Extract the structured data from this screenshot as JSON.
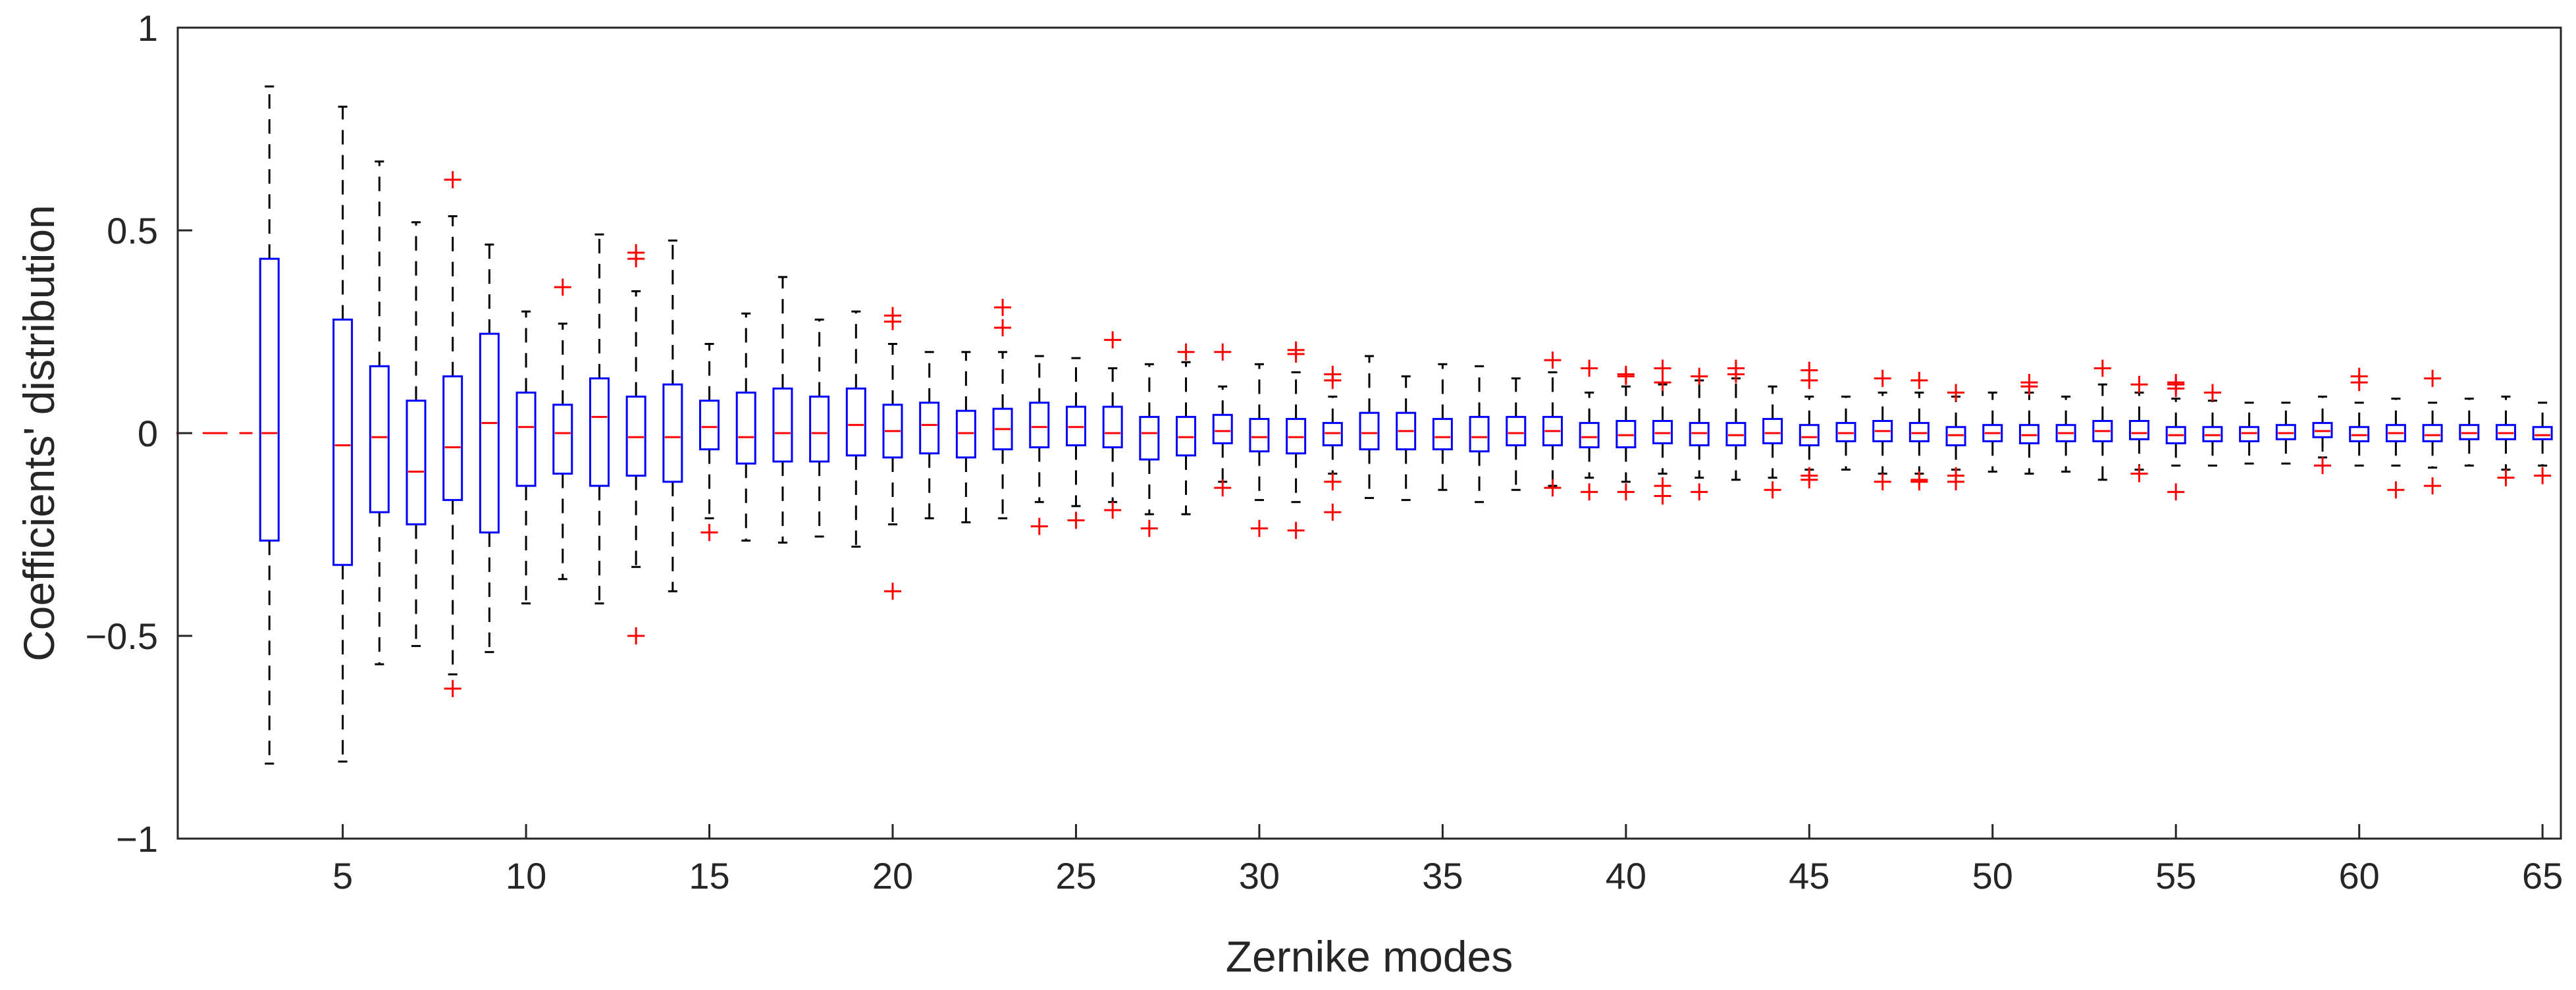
{
  "chart_data": {
    "type": "boxplot",
    "title": "",
    "xlabel": "Zernike modes",
    "ylabel": "Coefficients' distribution",
    "xlim": [
      0.5,
      65.5
    ],
    "ylim": [
      -1,
      1
    ],
    "x_ticks": [
      5,
      10,
      15,
      20,
      25,
      30,
      35,
      40,
      45,
      50,
      55,
      60,
      65
    ],
    "x_tick_labels": [
      "5",
      "10",
      "15",
      "20",
      "25",
      "30",
      "35",
      "40",
      "45",
      "50",
      "55",
      "60",
      "65"
    ],
    "y_ticks": [
      -1,
      -0.5,
      0,
      0.5,
      1
    ],
    "y_tick_labels": [
      "−1",
      "−0.5",
      "0",
      "0.5",
      "1"
    ],
    "colors": {
      "box": "#0000ff",
      "median": "#ff0000",
      "whisker": "#000000",
      "outlier": "#ff0000",
      "axis": "#262626"
    },
    "degenerate_modes": [
      {
        "mode": 1,
        "value": 0
      },
      {
        "mode": 2,
        "value": 0
      }
    ],
    "boxes": [
      {
        "mode": 3,
        "q1": -0.265,
        "median": 0.0,
        "q3": 0.43,
        "whisker_low": -0.815,
        "whisker_high": 0.855,
        "outliers": []
      },
      {
        "mode": 5,
        "q1": -0.325,
        "median": -0.03,
        "q3": 0.28,
        "whisker_low": -0.81,
        "whisker_high": 0.805,
        "outliers": []
      },
      {
        "mode": 6,
        "q1": -0.195,
        "median": -0.01,
        "q3": 0.165,
        "whisker_low": -0.57,
        "whisker_high": 0.67,
        "outliers": []
      },
      {
        "mode": 7,
        "q1": -0.225,
        "median": -0.095,
        "q3": 0.08,
        "whisker_low": -0.525,
        "whisker_high": 0.52,
        "outliers": []
      },
      {
        "mode": 8,
        "q1": -0.165,
        "median": -0.035,
        "q3": 0.14,
        "whisker_low": -0.595,
        "whisker_high": 0.535,
        "outliers": [
          0.625,
          -0.63
        ]
      },
      {
        "mode": 9,
        "q1": -0.245,
        "median": 0.025,
        "q3": 0.245,
        "whisker_low": -0.54,
        "whisker_high": 0.465,
        "outliers": []
      },
      {
        "mode": 10,
        "q1": -0.13,
        "median": 0.015,
        "q3": 0.1,
        "whisker_low": -0.42,
        "whisker_high": 0.3,
        "outliers": []
      },
      {
        "mode": 11,
        "q1": -0.1,
        "median": 0.0,
        "q3": 0.07,
        "whisker_low": -0.36,
        "whisker_high": 0.27,
        "outliers": [
          0.36
        ]
      },
      {
        "mode": 12,
        "q1": -0.13,
        "median": 0.04,
        "q3": 0.135,
        "whisker_low": -0.42,
        "whisker_high": 0.49,
        "outliers": []
      },
      {
        "mode": 13,
        "q1": -0.105,
        "median": -0.01,
        "q3": 0.09,
        "whisker_low": -0.33,
        "whisker_high": 0.35,
        "outliers": [
          0.445,
          0.43,
          -0.5
        ]
      },
      {
        "mode": 14,
        "q1": -0.12,
        "median": -0.01,
        "q3": 0.12,
        "whisker_low": -0.39,
        "whisker_high": 0.475,
        "outliers": []
      },
      {
        "mode": 15,
        "q1": -0.04,
        "median": 0.015,
        "q3": 0.08,
        "whisker_low": -0.21,
        "whisker_high": 0.22,
        "outliers": [
          -0.245
        ]
      },
      {
        "mode": 16,
        "q1": -0.075,
        "median": -0.01,
        "q3": 0.1,
        "whisker_low": -0.265,
        "whisker_high": 0.295,
        "outliers": []
      },
      {
        "mode": 17,
        "q1": -0.07,
        "median": 0.0,
        "q3": 0.11,
        "whisker_low": -0.27,
        "whisker_high": 0.385,
        "outliers": []
      },
      {
        "mode": 18,
        "q1": -0.07,
        "median": 0.0,
        "q3": 0.09,
        "whisker_low": -0.255,
        "whisker_high": 0.28,
        "outliers": []
      },
      {
        "mode": 19,
        "q1": -0.055,
        "median": 0.02,
        "q3": 0.11,
        "whisker_low": -0.28,
        "whisker_high": 0.3,
        "outliers": []
      },
      {
        "mode": 20,
        "q1": -0.06,
        "median": 0.005,
        "q3": 0.07,
        "whisker_low": -0.225,
        "whisker_high": 0.22,
        "outliers": [
          0.29,
          0.275,
          -0.39
        ]
      },
      {
        "mode": 21,
        "q1": -0.05,
        "median": 0.02,
        "q3": 0.075,
        "whisker_low": -0.21,
        "whisker_high": 0.2,
        "outliers": []
      },
      {
        "mode": 22,
        "q1": -0.06,
        "median": 0.0,
        "q3": 0.055,
        "whisker_low": -0.22,
        "whisker_high": 0.2,
        "outliers": []
      },
      {
        "mode": 23,
        "q1": -0.04,
        "median": 0.01,
        "q3": 0.06,
        "whisker_low": -0.21,
        "whisker_high": 0.2,
        "outliers": [
          0.31,
          0.26
        ]
      },
      {
        "mode": 24,
        "q1": -0.035,
        "median": 0.015,
        "q3": 0.075,
        "whisker_low": -0.17,
        "whisker_high": 0.19,
        "outliers": [
          -0.23
        ]
      },
      {
        "mode": 25,
        "q1": -0.03,
        "median": 0.015,
        "q3": 0.065,
        "whisker_low": -0.18,
        "whisker_high": 0.185,
        "outliers": [
          -0.215
        ]
      },
      {
        "mode": 26,
        "q1": -0.035,
        "median": 0.0,
        "q3": 0.065,
        "whisker_low": -0.17,
        "whisker_high": 0.16,
        "outliers": [
          0.23,
          -0.19
        ]
      },
      {
        "mode": 27,
        "q1": -0.065,
        "median": 0.0,
        "q3": 0.04,
        "whisker_low": -0.2,
        "whisker_high": 0.17,
        "outliers": [
          -0.235
        ]
      },
      {
        "mode": 28,
        "q1": -0.055,
        "median": -0.01,
        "q3": 0.04,
        "whisker_low": -0.2,
        "whisker_high": 0.175,
        "outliers": [
          0.2
        ]
      },
      {
        "mode": 29,
        "q1": -0.025,
        "median": 0.005,
        "q3": 0.045,
        "whisker_low": -0.12,
        "whisker_high": 0.115,
        "outliers": [
          0.2,
          -0.135
        ]
      },
      {
        "mode": 30,
        "q1": -0.045,
        "median": -0.01,
        "q3": 0.035,
        "whisker_low": -0.165,
        "whisker_high": 0.17,
        "outliers": [
          -0.235
        ]
      },
      {
        "mode": 31,
        "q1": -0.05,
        "median": -0.01,
        "q3": 0.035,
        "whisker_low": -0.17,
        "whisker_high": 0.15,
        "outliers": [
          0.205,
          0.195,
          -0.24
        ]
      },
      {
        "mode": 32,
        "q1": -0.03,
        "median": 0.0,
        "q3": 0.025,
        "whisker_low": -0.1,
        "whisker_high": 0.09,
        "outliers": [
          0.145,
          0.13,
          -0.12,
          -0.195
        ]
      },
      {
        "mode": 33,
        "q1": -0.04,
        "median": 0.0,
        "q3": 0.05,
        "whisker_low": -0.16,
        "whisker_high": 0.19,
        "outliers": []
      },
      {
        "mode": 34,
        "q1": -0.04,
        "median": 0.005,
        "q3": 0.05,
        "whisker_low": -0.165,
        "whisker_high": 0.14,
        "outliers": []
      },
      {
        "mode": 35,
        "q1": -0.04,
        "median": -0.01,
        "q3": 0.035,
        "whisker_low": -0.14,
        "whisker_high": 0.17,
        "outliers": []
      },
      {
        "mode": 36,
        "q1": -0.045,
        "median": -0.01,
        "q3": 0.04,
        "whisker_low": -0.17,
        "whisker_high": 0.165,
        "outliers": []
      },
      {
        "mode": 37,
        "q1": -0.03,
        "median": 0.0,
        "q3": 0.04,
        "whisker_low": -0.14,
        "whisker_high": 0.135,
        "outliers": []
      },
      {
        "mode": 38,
        "q1": -0.03,
        "median": 0.005,
        "q3": 0.04,
        "whisker_low": -0.13,
        "whisker_high": 0.15,
        "outliers": [
          0.18,
          -0.135
        ]
      },
      {
        "mode": 39,
        "q1": -0.035,
        "median": -0.01,
        "q3": 0.025,
        "whisker_low": -0.11,
        "whisker_high": 0.1,
        "outliers": [
          0.16,
          -0.145
        ]
      },
      {
        "mode": 40,
        "q1": -0.035,
        "median": -0.005,
        "q3": 0.03,
        "whisker_low": -0.12,
        "whisker_high": 0.115,
        "outliers": [
          0.145,
          0.14,
          -0.145
        ]
      },
      {
        "mode": 41,
        "q1": -0.025,
        "median": 0.0,
        "q3": 0.03,
        "whisker_low": -0.1,
        "whisker_high": 0.12,
        "outliers": [
          0.16,
          0.125,
          -0.13,
          -0.155
        ]
      },
      {
        "mode": 42,
        "q1": -0.03,
        "median": 0.0,
        "q3": 0.025,
        "whisker_low": -0.11,
        "whisker_high": 0.13,
        "outliers": [
          0.14,
          -0.145
        ]
      },
      {
        "mode": 43,
        "q1": -0.03,
        "median": -0.005,
        "q3": 0.025,
        "whisker_low": -0.115,
        "whisker_high": 0.135,
        "outliers": [
          0.16,
          0.145
        ]
      },
      {
        "mode": 44,
        "q1": -0.025,
        "median": 0.0,
        "q3": 0.035,
        "whisker_low": -0.11,
        "whisker_high": 0.115,
        "outliers": [
          -0.14
        ]
      },
      {
        "mode": 45,
        "q1": -0.03,
        "median": -0.01,
        "q3": 0.02,
        "whisker_low": -0.09,
        "whisker_high": 0.09,
        "outliers": [
          0.155,
          0.13,
          -0.105,
          -0.115
        ]
      },
      {
        "mode": 46,
        "q1": -0.02,
        "median": 0.0,
        "q3": 0.025,
        "whisker_low": -0.09,
        "whisker_high": 0.09,
        "outliers": []
      },
      {
        "mode": 47,
        "q1": -0.02,
        "median": 0.005,
        "q3": 0.03,
        "whisker_low": -0.1,
        "whisker_high": 0.1,
        "outliers": [
          0.135,
          -0.12
        ]
      },
      {
        "mode": 48,
        "q1": -0.02,
        "median": 0.0,
        "q3": 0.025,
        "whisker_low": -0.1,
        "whisker_high": 0.1,
        "outliers": [
          0.13,
          -0.115,
          -0.12
        ]
      },
      {
        "mode": 49,
        "q1": -0.03,
        "median": -0.005,
        "q3": 0.015,
        "whisker_low": -0.09,
        "whisker_high": 0.09,
        "outliers": [
          0.1,
          -0.105,
          -0.12
        ]
      },
      {
        "mode": 50,
        "q1": -0.02,
        "median": 0.0,
        "q3": 0.02,
        "whisker_low": -0.095,
        "whisker_high": 0.1,
        "outliers": []
      },
      {
        "mode": 51,
        "q1": -0.025,
        "median": -0.005,
        "q3": 0.02,
        "whisker_low": -0.1,
        "whisker_high": 0.1,
        "outliers": [
          0.125,
          0.115
        ]
      },
      {
        "mode": 52,
        "q1": -0.02,
        "median": 0.0,
        "q3": 0.02,
        "whisker_low": -0.095,
        "whisker_high": 0.09,
        "outliers": []
      },
      {
        "mode": 53,
        "q1": -0.02,
        "median": 0.005,
        "q3": 0.03,
        "whisker_low": -0.115,
        "whisker_high": 0.12,
        "outliers": [
          0.16
        ]
      },
      {
        "mode": 54,
        "q1": -0.015,
        "median": 0.0,
        "q3": 0.03,
        "whisker_low": -0.09,
        "whisker_high": 0.1,
        "outliers": [
          0.12,
          -0.1
        ]
      },
      {
        "mode": 55,
        "q1": -0.025,
        "median": -0.005,
        "q3": 0.015,
        "whisker_low": -0.08,
        "whisker_high": 0.085,
        "outliers": [
          0.125,
          0.12,
          0.11,
          -0.145
        ]
      },
      {
        "mode": 56,
        "q1": -0.02,
        "median": -0.005,
        "q3": 0.015,
        "whisker_low": -0.08,
        "whisker_high": 0.08,
        "outliers": [
          0.1
        ]
      },
      {
        "mode": 57,
        "q1": -0.02,
        "median": 0.0,
        "q3": 0.015,
        "whisker_low": -0.075,
        "whisker_high": 0.075,
        "outliers": []
      },
      {
        "mode": 58,
        "q1": -0.015,
        "median": 0.0,
        "q3": 0.02,
        "whisker_low": -0.075,
        "whisker_high": 0.075,
        "outliers": []
      },
      {
        "mode": 59,
        "q1": -0.01,
        "median": 0.005,
        "q3": 0.025,
        "whisker_low": -0.06,
        "whisker_high": 0.09,
        "outliers": [
          -0.08
        ]
      },
      {
        "mode": 60,
        "q1": -0.02,
        "median": -0.005,
        "q3": 0.015,
        "whisker_low": -0.08,
        "whisker_high": 0.075,
        "outliers": [
          0.14,
          0.125
        ]
      },
      {
        "mode": 61,
        "q1": -0.02,
        "median": 0.0,
        "q3": 0.02,
        "whisker_low": -0.08,
        "whisker_high": 0.085,
        "outliers": [
          -0.14
        ]
      },
      {
        "mode": 62,
        "q1": -0.02,
        "median": -0.005,
        "q3": 0.02,
        "whisker_low": -0.085,
        "whisker_high": 0.075,
        "outliers": [
          0.135,
          -0.13
        ]
      },
      {
        "mode": 63,
        "q1": -0.015,
        "median": 0.0,
        "q3": 0.02,
        "whisker_low": -0.08,
        "whisker_high": 0.085,
        "outliers": []
      },
      {
        "mode": 64,
        "q1": -0.015,
        "median": 0.0,
        "q3": 0.02,
        "whisker_low": -0.09,
        "whisker_high": 0.09,
        "outliers": [
          -0.11
        ]
      },
      {
        "mode": 65,
        "q1": -0.015,
        "median": -0.005,
        "q3": 0.015,
        "whisker_low": -0.08,
        "whisker_high": 0.075,
        "outliers": [
          -0.105
        ]
      }
    ]
  }
}
